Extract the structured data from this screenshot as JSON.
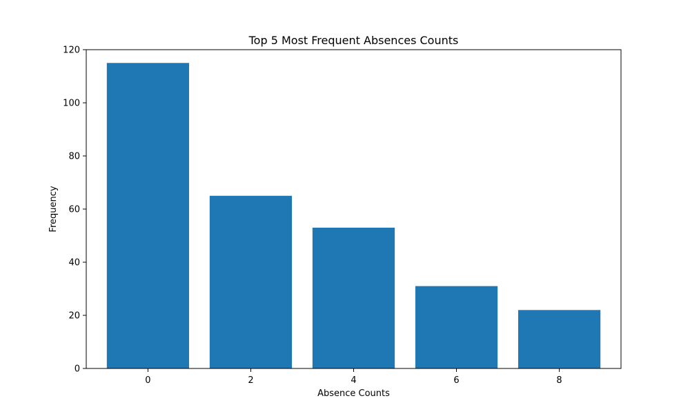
{
  "chart_data": {
    "type": "bar",
    "title": "Top 5 Most Frequent Absences Counts",
    "xlabel": "Absence Counts",
    "ylabel": "Frequency",
    "categories": [
      0,
      2,
      4,
      6,
      8
    ],
    "values": [
      115,
      65,
      53,
      31,
      22
    ],
    "xlim": [
      -1.2,
      9.2
    ],
    "ylim": [
      0,
      120
    ],
    "yticks": [
      0,
      20,
      40,
      60,
      80,
      100,
      120
    ],
    "xticks": [
      0,
      2,
      4,
      6,
      8
    ],
    "bar_width_units": 1.6,
    "bar_color": "#1f77b4",
    "grid": false,
    "legend": "none"
  }
}
